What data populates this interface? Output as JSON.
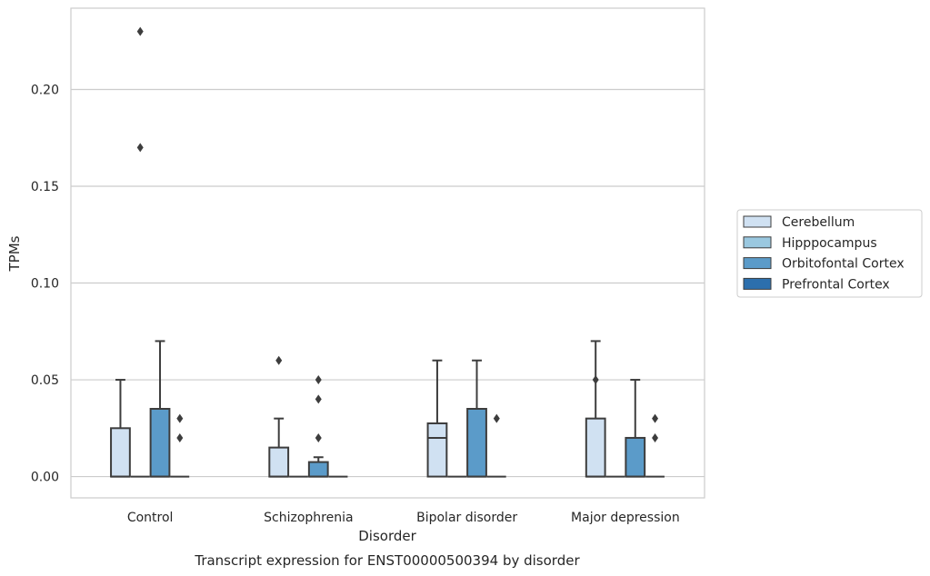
{
  "chart_data": {
    "type": "box",
    "title": "",
    "caption": "Transcript expression for ENST00000500394 by disorder",
    "xlabel": "Disorder",
    "ylabel": "TPMs",
    "ylim": [
      -0.011,
      0.242
    ],
    "yticks": [
      0.0,
      0.05,
      0.1,
      0.15,
      0.2
    ],
    "ytick_labels": [
      "0.00",
      "0.05",
      "0.10",
      "0.15",
      "0.20"
    ],
    "grid": true,
    "legend_position": "right",
    "categories": [
      "Control",
      "Schizophrenia",
      "Bipolar disorder",
      "Major depression"
    ],
    "series": [
      {
        "name": "Cerebellum",
        "color": "#d0e1f2",
        "boxes": [
          {
            "min": 0.0,
            "q1": 0.0,
            "median": 0.0,
            "q3": 0.025,
            "max": 0.05,
            "outliers": []
          },
          {
            "min": 0.0,
            "q1": 0.0,
            "median": 0.0,
            "q3": 0.015,
            "max": 0.03,
            "outliers": [
              0.06
            ]
          },
          {
            "min": 0.0,
            "q1": 0.0,
            "median": 0.02,
            "q3": 0.0275,
            "max": 0.06,
            "outliers": []
          },
          {
            "min": 0.0,
            "q1": 0.0,
            "median": 0.0,
            "q3": 0.03,
            "max": 0.07,
            "outliers": [
              0.05
            ]
          }
        ]
      },
      {
        "name": "Hipppocampus",
        "color": "#9ac8e0",
        "boxes": [
          {
            "min": 0.0,
            "q1": 0.0,
            "median": 0.0,
            "q3": 0.0,
            "max": 0.0,
            "outliers": [
              0.23,
              0.17
            ]
          },
          {
            "min": 0.0,
            "q1": 0.0,
            "median": 0.0,
            "q3": 0.0,
            "max": 0.0,
            "outliers": []
          },
          {
            "min": 0.0,
            "q1": 0.0,
            "median": 0.0,
            "q3": 0.0,
            "max": 0.0,
            "outliers": []
          },
          {
            "min": 0.0,
            "q1": 0.0,
            "median": 0.0,
            "q3": 0.0,
            "max": 0.0,
            "outliers": []
          }
        ]
      },
      {
        "name": "Orbitofontal Cortex",
        "color": "#5b9bc9",
        "boxes": [
          {
            "min": 0.0,
            "q1": 0.0,
            "median": 0.0,
            "q3": 0.035,
            "max": 0.07,
            "outliers": []
          },
          {
            "min": 0.0,
            "q1": 0.0,
            "median": 0.0,
            "q3": 0.0075,
            "max": 0.01,
            "outliers": [
              0.05,
              0.04,
              0.02
            ]
          },
          {
            "min": 0.0,
            "q1": 0.0,
            "median": 0.0,
            "q3": 0.035,
            "max": 0.06,
            "outliers": []
          },
          {
            "min": 0.0,
            "q1": 0.0,
            "median": 0.0,
            "q3": 0.02,
            "max": 0.05,
            "outliers": []
          }
        ]
      },
      {
        "name": "Prefrontal Cortex",
        "color": "#2c6fad",
        "boxes": [
          {
            "min": 0.0,
            "q1": 0.0,
            "median": 0.0,
            "q3": 0.0,
            "max": 0.0,
            "outliers": [
              0.03,
              0.02
            ]
          },
          {
            "min": 0.0,
            "q1": 0.0,
            "median": 0.0,
            "q3": 0.0,
            "max": 0.0,
            "outliers": []
          },
          {
            "min": 0.0,
            "q1": 0.0,
            "median": 0.0,
            "q3": 0.0,
            "max": 0.0,
            "outliers": [
              0.03
            ]
          },
          {
            "min": 0.0,
            "q1": 0.0,
            "median": 0.0,
            "q3": 0.0,
            "max": 0.0,
            "outliers": [
              0.03,
              0.02
            ]
          }
        ]
      }
    ]
  }
}
